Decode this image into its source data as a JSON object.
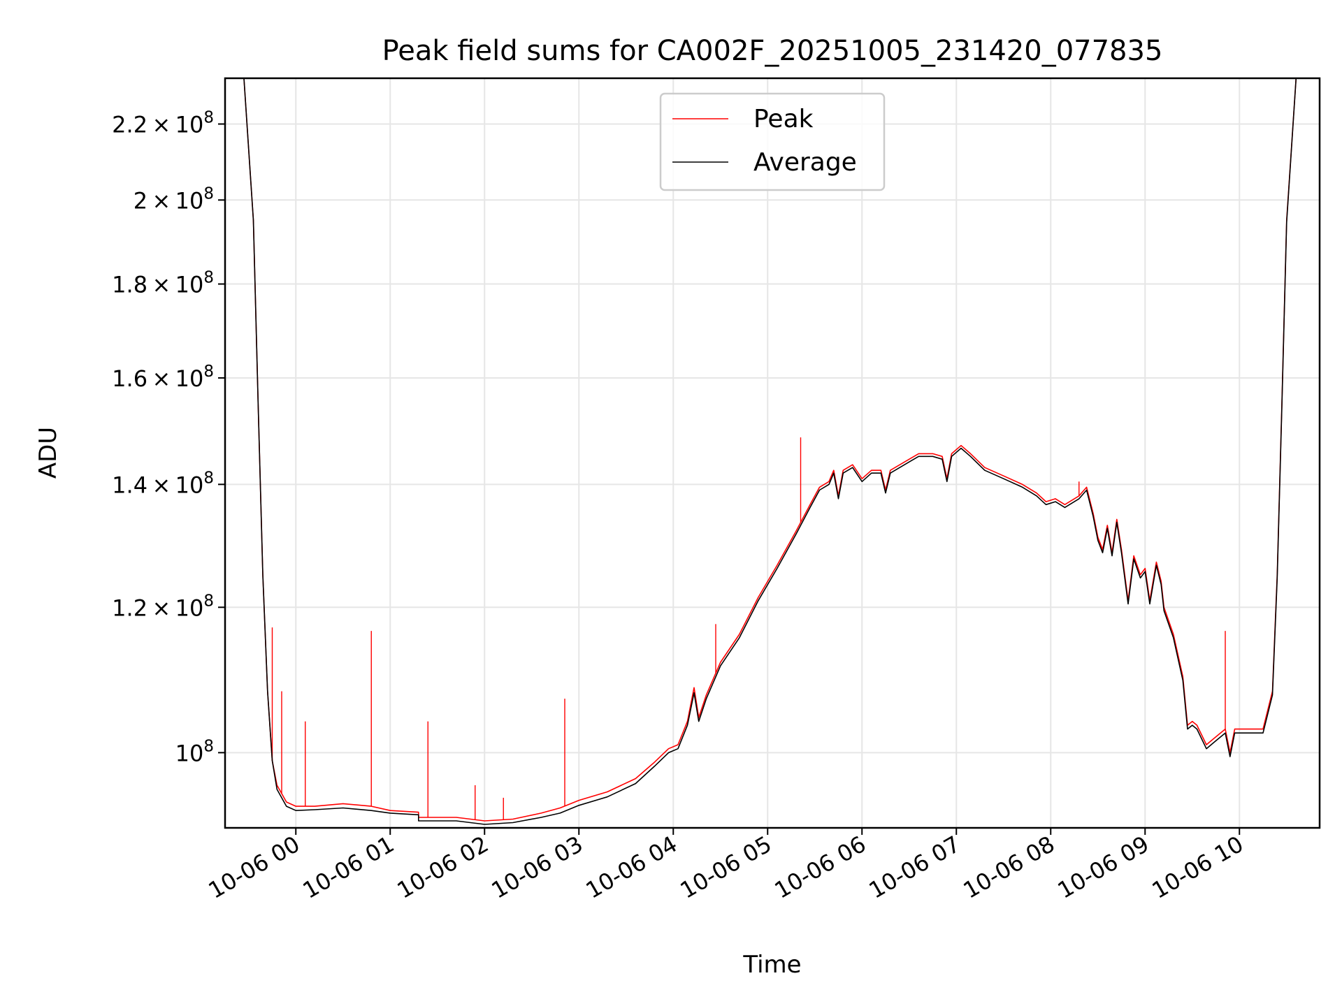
{
  "chart_data": {
    "type": "line",
    "title": "Peak field sums for CA002F_20251005_231420_077835",
    "xlabel": "Time",
    "ylabel": "ADU",
    "yscale": "log",
    "x_units": "hours since 10-06 00:00",
    "xlim": [
      -0.75,
      10.85
    ],
    "ylim": [
      91000000,
      233000000
    ],
    "x_ticks": [
      {
        "value": 0,
        "label": "10-06 00"
      },
      {
        "value": 1,
        "label": "10-06 01"
      },
      {
        "value": 2,
        "label": "10-06 02"
      },
      {
        "value": 3,
        "label": "10-06 03"
      },
      {
        "value": 4,
        "label": "10-06 04"
      },
      {
        "value": 5,
        "label": "10-06 05"
      },
      {
        "value": 6,
        "label": "10-06 06"
      },
      {
        "value": 7,
        "label": "10-06 07"
      },
      {
        "value": 8,
        "label": "10-06 08"
      },
      {
        "value": 9,
        "label": "10-06 09"
      },
      {
        "value": 10,
        "label": "10-06 10"
      }
    ],
    "y_ticks": [
      {
        "value": 100000000,
        "mantissa": "",
        "exponent": "8"
      },
      {
        "value": 120000000,
        "mantissa": "1.2",
        "exponent": "8"
      },
      {
        "value": 140000000,
        "mantissa": "1.4",
        "exponent": "8"
      },
      {
        "value": 160000000,
        "mantissa": "1.6",
        "exponent": "8"
      },
      {
        "value": 180000000,
        "mantissa": "1.8",
        "exponent": "8"
      },
      {
        "value": 200000000,
        "mantissa": "2",
        "exponent": "8"
      },
      {
        "value": 220000000,
        "mantissa": "2.2",
        "exponent": "8"
      }
    ],
    "grid": true,
    "legend_position": "top-center",
    "series": [
      {
        "name": "Peak",
        "color": "#ff0000",
        "points": [
          [
            -0.55,
            233000000
          ],
          [
            -0.45,
            195000000
          ],
          [
            -0.4,
            155000000
          ],
          [
            -0.35,
            125000000
          ],
          [
            -0.3,
            108000000
          ],
          [
            -0.25,
            99000000
          ],
          [
            -0.2,
            96000000
          ],
          [
            -0.1,
            94000000
          ],
          [
            0.0,
            93500000
          ],
          [
            0.2,
            93500000
          ],
          [
            0.5,
            93800000
          ],
          [
            0.8,
            93500000
          ],
          [
            1.0,
            93000000
          ],
          [
            1.3,
            92800000
          ],
          [
            1.3,
            92200000
          ],
          [
            1.7,
            92200000
          ],
          [
            2.0,
            91800000
          ],
          [
            2.3,
            92000000
          ],
          [
            2.6,
            92700000
          ],
          [
            2.8,
            93300000
          ],
          [
            3.0,
            94200000
          ],
          [
            3.3,
            95200000
          ],
          [
            3.6,
            96800000
          ],
          [
            3.8,
            98800000
          ],
          [
            3.95,
            100500000
          ],
          [
            4.05,
            101000000
          ],
          [
            4.15,
            104000000
          ],
          [
            4.22,
            108500000
          ],
          [
            4.27,
            104500000
          ],
          [
            4.35,
            107500000
          ],
          [
            4.5,
            112000000
          ],
          [
            4.7,
            116000000
          ],
          [
            4.9,
            121500000
          ],
          [
            5.1,
            126500000
          ],
          [
            5.3,
            132000000
          ],
          [
            5.45,
            136500000
          ],
          [
            5.55,
            139500000
          ],
          [
            5.65,
            140500000
          ],
          [
            5.7,
            142500000
          ],
          [
            5.75,
            138000000
          ],
          [
            5.8,
            142500000
          ],
          [
            5.9,
            143500000
          ],
          [
            6.0,
            141000000
          ],
          [
            6.1,
            142500000
          ],
          [
            6.2,
            142500000
          ],
          [
            6.25,
            139000000
          ],
          [
            6.3,
            142500000
          ],
          [
            6.5,
            144500000
          ],
          [
            6.6,
            145500000
          ],
          [
            6.75,
            145500000
          ],
          [
            6.85,
            145000000
          ],
          [
            6.9,
            141000000
          ],
          [
            6.95,
            145500000
          ],
          [
            7.05,
            147000000
          ],
          [
            7.15,
            145500000
          ],
          [
            7.3,
            143000000
          ],
          [
            7.5,
            141500000
          ],
          [
            7.7,
            140000000
          ],
          [
            7.85,
            138500000
          ],
          [
            7.95,
            137000000
          ],
          [
            8.05,
            137500000
          ],
          [
            8.15,
            136500000
          ],
          [
            8.3,
            138000000
          ],
          [
            8.38,
            139500000
          ],
          [
            8.45,
            135000000
          ],
          [
            8.5,
            131000000
          ],
          [
            8.55,
            129000000
          ],
          [
            8.6,
            133000000
          ],
          [
            8.65,
            128500000
          ],
          [
            8.7,
            134000000
          ],
          [
            8.75,
            129000000
          ],
          [
            8.82,
            121000000
          ],
          [
            8.88,
            128000000
          ],
          [
            8.95,
            125000000
          ],
          [
            9.0,
            126000000
          ],
          [
            9.05,
            121000000
          ],
          [
            9.12,
            127000000
          ],
          [
            9.17,
            124000000
          ],
          [
            9.2,
            120000000
          ],
          [
            9.3,
            116000000
          ],
          [
            9.4,
            110000000
          ],
          [
            9.45,
            103500000
          ],
          [
            9.5,
            104000000
          ],
          [
            9.55,
            103500000
          ],
          [
            9.65,
            101000000
          ],
          [
            9.75,
            102000000
          ],
          [
            9.85,
            103000000
          ],
          [
            9.9,
            100000000
          ],
          [
            9.95,
            103000000
          ],
          [
            10.1,
            103000000
          ],
          [
            10.25,
            103000000
          ],
          [
            10.35,
            108000000
          ],
          [
            10.4,
            125000000
          ],
          [
            10.45,
            155000000
          ],
          [
            10.5,
            195000000
          ],
          [
            10.6,
            233000000
          ]
        ],
        "spikes": [
          [
            -0.25,
            117000000
          ],
          [
            -0.15,
            108000000
          ],
          [
            0.1,
            104000000
          ],
          [
            0.8,
            116500000
          ],
          [
            1.4,
            104000000
          ],
          [
            1.9,
            96000000
          ],
          [
            2.2,
            94500000
          ],
          [
            2.85,
            107000000
          ],
          [
            4.45,
            117500000
          ],
          [
            5.35,
            148500000
          ],
          [
            8.3,
            140500000
          ],
          [
            9.85,
            116500000
          ]
        ]
      },
      {
        "name": "Average",
        "color": "#000000",
        "points": [
          [
            -0.55,
            233000000
          ],
          [
            -0.45,
            195000000
          ],
          [
            -0.4,
            155000000
          ],
          [
            -0.35,
            125000000
          ],
          [
            -0.3,
            108000000
          ],
          [
            -0.25,
            99000000
          ],
          [
            -0.2,
            95500000
          ],
          [
            -0.1,
            93500000
          ],
          [
            0.0,
            93000000
          ],
          [
            0.2,
            93100000
          ],
          [
            0.5,
            93300000
          ],
          [
            0.8,
            93000000
          ],
          [
            1.0,
            92700000
          ],
          [
            1.3,
            92500000
          ],
          [
            1.3,
            91800000
          ],
          [
            1.7,
            91800000
          ],
          [
            2.0,
            91400000
          ],
          [
            2.3,
            91600000
          ],
          [
            2.6,
            92200000
          ],
          [
            2.8,
            92700000
          ],
          [
            3.0,
            93600000
          ],
          [
            3.3,
            94600000
          ],
          [
            3.6,
            96200000
          ],
          [
            3.8,
            98300000
          ],
          [
            3.95,
            100000000
          ],
          [
            4.05,
            100500000
          ],
          [
            4.15,
            103500000
          ],
          [
            4.22,
            107800000
          ],
          [
            4.27,
            104000000
          ],
          [
            4.35,
            107000000
          ],
          [
            4.5,
            111500000
          ],
          [
            4.7,
            115500000
          ],
          [
            4.9,
            121000000
          ],
          [
            5.1,
            126000000
          ],
          [
            5.3,
            131500000
          ],
          [
            5.45,
            136000000
          ],
          [
            5.55,
            139000000
          ],
          [
            5.65,
            140000000
          ],
          [
            5.7,
            142000000
          ],
          [
            5.75,
            137500000
          ],
          [
            5.8,
            142000000
          ],
          [
            5.9,
            143000000
          ],
          [
            6.0,
            140500000
          ],
          [
            6.1,
            142000000
          ],
          [
            6.2,
            142000000
          ],
          [
            6.25,
            138500000
          ],
          [
            6.3,
            142000000
          ],
          [
            6.5,
            144000000
          ],
          [
            6.6,
            145000000
          ],
          [
            6.75,
            145000000
          ],
          [
            6.85,
            144500000
          ],
          [
            6.9,
            140500000
          ],
          [
            6.95,
            145000000
          ],
          [
            7.05,
            146500000
          ],
          [
            7.15,
            145000000
          ],
          [
            7.3,
            142500000
          ],
          [
            7.5,
            141000000
          ],
          [
            7.7,
            139500000
          ],
          [
            7.85,
            138000000
          ],
          [
            7.95,
            136500000
          ],
          [
            8.05,
            137000000
          ],
          [
            8.15,
            136000000
          ],
          [
            8.3,
            137500000
          ],
          [
            8.38,
            139000000
          ],
          [
            8.45,
            134500000
          ],
          [
            8.5,
            130500000
          ],
          [
            8.55,
            128500000
          ],
          [
            8.6,
            132500000
          ],
          [
            8.65,
            128000000
          ],
          [
            8.7,
            133500000
          ],
          [
            8.75,
            128500000
          ],
          [
            8.82,
            120500000
          ],
          [
            8.88,
            127500000
          ],
          [
            8.95,
            124500000
          ],
          [
            9.0,
            125500000
          ],
          [
            9.05,
            120500000
          ],
          [
            9.12,
            126500000
          ],
          [
            9.17,
            123500000
          ],
          [
            9.2,
            119500000
          ],
          [
            9.3,
            115500000
          ],
          [
            9.4,
            109500000
          ],
          [
            9.45,
            103000000
          ],
          [
            9.5,
            103500000
          ],
          [
            9.55,
            103000000
          ],
          [
            9.65,
            100500000
          ],
          [
            9.75,
            101500000
          ],
          [
            9.85,
            102500000
          ],
          [
            9.9,
            99500000
          ],
          [
            9.95,
            102500000
          ],
          [
            10.1,
            102500000
          ],
          [
            10.25,
            102500000
          ],
          [
            10.35,
            107500000
          ],
          [
            10.4,
            124500000
          ],
          [
            10.45,
            154500000
          ],
          [
            10.5,
            194500000
          ],
          [
            10.6,
            233000000
          ]
        ]
      }
    ]
  }
}
